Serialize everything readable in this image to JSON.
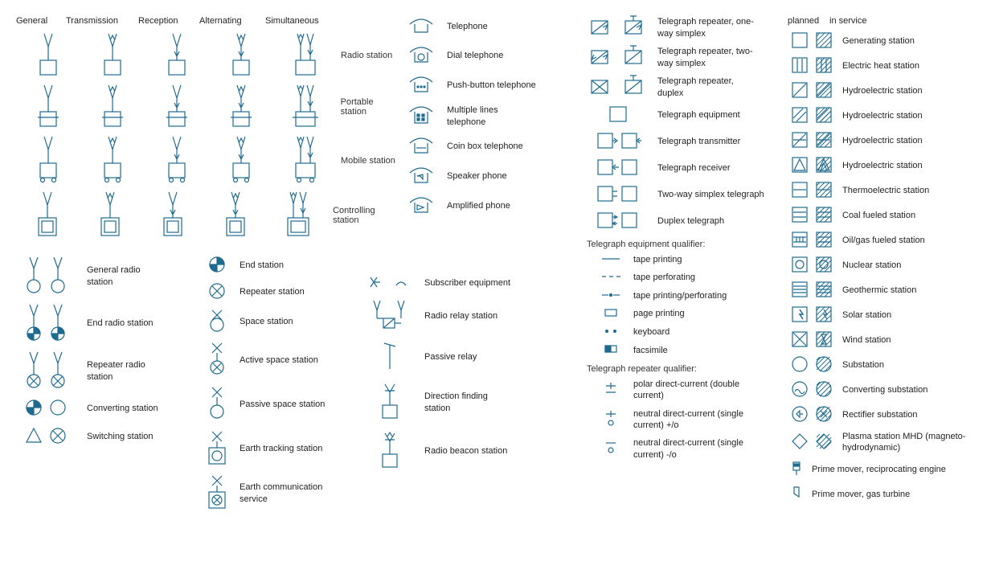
{
  "colors": {
    "stroke": "#1f6b8f",
    "text": "#333333",
    "fill": "#ffffff",
    "filldark": "#1f6b8f"
  },
  "radioColumns": [
    "General",
    "Transmission",
    "Reception",
    "Alternating",
    "Simultaneous"
  ],
  "radioRows": [
    {
      "label": "Radio station"
    },
    {
      "label": "Portable station"
    },
    {
      "label": "Mobile station"
    },
    {
      "label": "Controlling station"
    }
  ],
  "radioCircle": [
    {
      "label": "General radio station"
    },
    {
      "label": "End radio station"
    },
    {
      "label": "Repeater radio station"
    },
    {
      "label": "Converting station"
    },
    {
      "label": "Switching station"
    }
  ],
  "stations": [
    {
      "label": "End station"
    },
    {
      "label": "Repeater station"
    },
    {
      "label": "Space station"
    },
    {
      "label": "Active space station"
    },
    {
      "label": "Passive space station"
    },
    {
      "label": "Earth tracking station"
    },
    {
      "label": "Earth communication service"
    }
  ],
  "relay": [
    {
      "label": "Subscriber equipment"
    },
    {
      "label": "Radio relay station"
    },
    {
      "label": "Passive relay"
    },
    {
      "label": "Direction finding station"
    },
    {
      "label": "Radio beacon station"
    }
  ],
  "phones": [
    {
      "label": "Telephone"
    },
    {
      "label": "Dial telephone"
    },
    {
      "label": "Push-button telephone"
    },
    {
      "label": "Multiple lines telephone"
    },
    {
      "label": "Coin box telephone"
    },
    {
      "label": "Speaker phone"
    },
    {
      "label": "Amplified phone"
    }
  ],
  "telegraph": [
    {
      "label": "Telegraph repeater, one-way simplex"
    },
    {
      "label": "Telegraph repeater, two-way simplex"
    },
    {
      "label": "Telegraph repeater, duplex"
    },
    {
      "label": "Telegraph equipment"
    },
    {
      "label": "Telegraph transmitter"
    },
    {
      "label": "Telegraph receiver"
    },
    {
      "label": "Two-way simplex telegraph"
    },
    {
      "label": "Duplex telegraph"
    }
  ],
  "equipQualTitle": "Telegraph equipment qualifier:",
  "equipQual": [
    {
      "label": "tape printing"
    },
    {
      "label": "tape perforating"
    },
    {
      "label": "tape printing/perforating"
    },
    {
      "label": "page printing"
    },
    {
      "label": "keyboard"
    },
    {
      "label": "facsimile"
    }
  ],
  "repQualTitle": "Telegraph repeater qualifier:",
  "repQual": [
    {
      "label": "polar direct-current (double current)"
    },
    {
      "label": "neutral direct-current (single current) +/o"
    },
    {
      "label": "neutral direct-current (single current) -/o"
    }
  ],
  "plannedHdr": "planned",
  "serviceHdr": "in service",
  "power": [
    {
      "label": "Generating station"
    },
    {
      "label": "Electric heat station"
    },
    {
      "label": "Hydroelectric station"
    },
    {
      "label": "Hydroelectric station"
    },
    {
      "label": "Hydroelectric station"
    },
    {
      "label": "Hydroelectric station"
    },
    {
      "label": "Thermoelectric station"
    },
    {
      "label": "Coal fueled station"
    },
    {
      "label": "Oil/gas fueled station"
    },
    {
      "label": "Nuclear station"
    },
    {
      "label": "Geothermic station"
    },
    {
      "label": "Solar station"
    },
    {
      "label": "Wind station"
    },
    {
      "label": "Substation"
    },
    {
      "label": "Converting substation"
    },
    {
      "label": "Rectifier substation"
    },
    {
      "label": "Plasma station MHD (magneto-hydrodynamic)"
    }
  ],
  "movers": [
    {
      "label": "Prime mover, reciprocating engine"
    },
    {
      "label": "Prime mover, gas turbine"
    }
  ]
}
